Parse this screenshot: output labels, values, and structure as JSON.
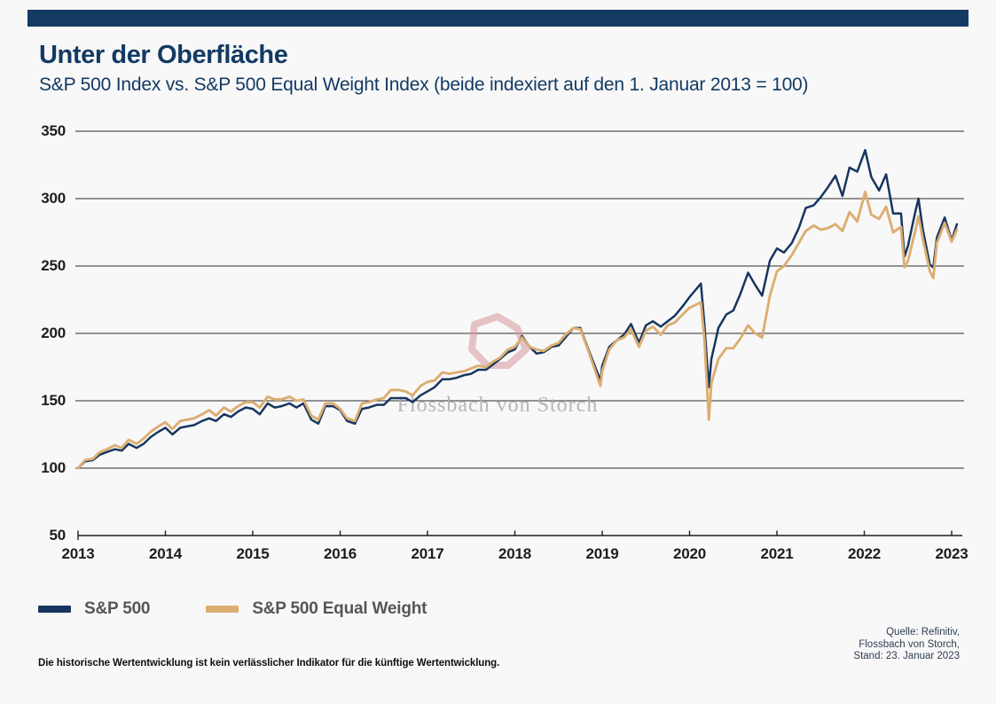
{
  "header": {
    "bar_color": "#133a63",
    "title_color": "#133a63"
  },
  "watermark": {
    "text": "Flossbach von Storch",
    "ring_color": "#d4959c",
    "text_color": "#b0b0b3"
  },
  "footer": {
    "disclaimer": "Die historische Wertentwicklung ist kein verlässlicher Indikator für die künftige Wertentwicklung.",
    "source_lines": [
      "Quelle: Refinitiv,",
      "Flossbach von Storch,",
      "Stand: 23. Januar 2023"
    ]
  },
  "chart_data": {
    "type": "line",
    "title": "Unter der Oberfläche",
    "subtitle": "S&P 500 Index vs. S&P 500 Equal Weight Index (beide indexiert auf den 1. Januar 2013 = 100)",
    "xlabel": "",
    "ylabel": "",
    "xlim": [
      2013,
      2023.1
    ],
    "ylim": [
      50,
      350
    ],
    "yticks": [
      50,
      100,
      150,
      200,
      250,
      300,
      350
    ],
    "xticks": [
      2013,
      2014,
      2015,
      2016,
      2017,
      2018,
      2019,
      2020,
      2021,
      2022,
      2023
    ],
    "grid_levels": [
      100,
      150,
      200,
      250,
      300,
      350
    ],
    "grid": true,
    "legend_position": "bottom-left",
    "x": [
      2013.0,
      2013.08,
      2013.17,
      2013.25,
      2013.33,
      2013.42,
      2013.5,
      2013.58,
      2013.67,
      2013.75,
      2013.83,
      2013.92,
      2014.0,
      2014.08,
      2014.17,
      2014.25,
      2014.33,
      2014.42,
      2014.5,
      2014.58,
      2014.67,
      2014.75,
      2014.83,
      2014.92,
      2015.0,
      2015.08,
      2015.17,
      2015.25,
      2015.33,
      2015.42,
      2015.5,
      2015.58,
      2015.67,
      2015.75,
      2015.83,
      2015.92,
      2016.0,
      2016.08,
      2016.17,
      2016.25,
      2016.33,
      2016.42,
      2016.5,
      2016.58,
      2016.67,
      2016.75,
      2016.83,
      2016.92,
      2017.0,
      2017.08,
      2017.17,
      2017.25,
      2017.33,
      2017.42,
      2017.5,
      2017.58,
      2017.67,
      2017.75,
      2017.83,
      2017.92,
      2018.0,
      2018.08,
      2018.17,
      2018.25,
      2018.33,
      2018.42,
      2018.5,
      2018.58,
      2018.67,
      2018.75,
      2018.83,
      2018.98,
      2019.0,
      2019.08,
      2019.17,
      2019.25,
      2019.33,
      2019.42,
      2019.5,
      2019.58,
      2019.67,
      2019.75,
      2019.83,
      2019.92,
      2020.0,
      2020.13,
      2020.17,
      2020.22,
      2020.25,
      2020.33,
      2020.42,
      2020.5,
      2020.58,
      2020.67,
      2020.75,
      2020.83,
      2020.92,
      2021.0,
      2021.08,
      2021.17,
      2021.25,
      2021.33,
      2021.42,
      2021.5,
      2021.58,
      2021.67,
      2021.75,
      2021.83,
      2021.92,
      2022.01,
      2022.08,
      2022.17,
      2022.25,
      2022.33,
      2022.42,
      2022.46,
      2022.5,
      2022.58,
      2022.62,
      2022.67,
      2022.75,
      2022.79,
      2022.83,
      2022.92,
      2023.0,
      2023.06
    ],
    "series": [
      {
        "name": "S&P 500",
        "color": "#17365f",
        "values": [
          100,
          105,
          106,
          110,
          112,
          114,
          113,
          118,
          115,
          118,
          123,
          127,
          130,
          125,
          130,
          131,
          132,
          135,
          137,
          135,
          140,
          138,
          142,
          145,
          144,
          140,
          148,
          145,
          146,
          148,
          145,
          148,
          136,
          133,
          146,
          146,
          143,
          135,
          133,
          144,
          145,
          147,
          147,
          152,
          152,
          152,
          149,
          154,
          157,
          160,
          166,
          166,
          167,
          169,
          170,
          173,
          173,
          177,
          181,
          186,
          188,
          198,
          190,
          185,
          186,
          190,
          191,
          197,
          204,
          204,
          190,
          165,
          176,
          190,
          195,
          199,
          207,
          193,
          206,
          209,
          205,
          209,
          213,
          220,
          227,
          237,
          207,
          160,
          181,
          204,
          214,
          217,
          229,
          245,
          236,
          228,
          254,
          263,
          260,
          267,
          278,
          293,
          295,
          301,
          308,
          317,
          302,
          323,
          320,
          336,
          316,
          306,
          318,
          289,
          289,
          257,
          265,
          289,
          300,
          277,
          251,
          249,
          271,
          286,
          269,
          281
        ]
      },
      {
        "name": "S&P 500 Equal Weight",
        "color": "#dcae72",
        "values": [
          100,
          106,
          107,
          112,
          114,
          117,
          115,
          121,
          118,
          122,
          127,
          131,
          134,
          129,
          135,
          136,
          137,
          140,
          143,
          139,
          145,
          142,
          146,
          149,
          149,
          145,
          153,
          151,
          151,
          153,
          150,
          151,
          139,
          136,
          148,
          148,
          144,
          137,
          135,
          148,
          149,
          151,
          152,
          158,
          158,
          157,
          154,
          161,
          164,
          165,
          171,
          170,
          171,
          172,
          174,
          176,
          175,
          179,
          182,
          188,
          190,
          197,
          190,
          188,
          187,
          191,
          193,
          199,
          204,
          203,
          189,
          161,
          172,
          188,
          195,
          197,
          203,
          190,
          202,
          205,
          199,
          206,
          208,
          214,
          219,
          223,
          196,
          136,
          163,
          181,
          189,
          189,
          196,
          206,
          200,
          197,
          228,
          246,
          250,
          258,
          267,
          276,
          280,
          277,
          278,
          281,
          276,
          290,
          283,
          305,
          288,
          285,
          294,
          275,
          279,
          249,
          254,
          275,
          287,
          270,
          246,
          241,
          267,
          282,
          268,
          277
        ]
      }
    ]
  }
}
